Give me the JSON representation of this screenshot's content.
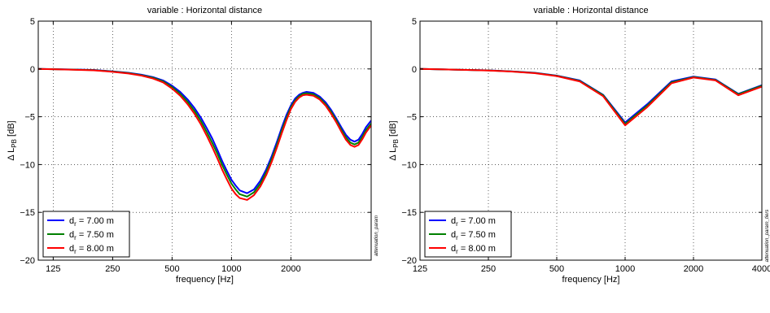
{
  "chart_data": [
    {
      "type": "line",
      "title": "variable : Horizontal distance",
      "xlabel": "frequency [Hz]",
      "ylabel_main": "Δ L",
      "ylabel_sub": "PB",
      "ylabel_unit": " [dB]",
      "x_scale": "log",
      "xlim": [
        105,
        5100
      ],
      "ylim": [
        -20,
        5
      ],
      "xticks": [
        125,
        250,
        500,
        1000,
        2000
      ],
      "yticks": [
        5,
        0,
        -5,
        -10,
        -15,
        -20
      ],
      "ytick_labels": [
        "5",
        "0",
        "−5",
        "−10",
        "−15",
        "−20"
      ],
      "grid": true,
      "legend_position": "bottom-left",
      "side_note": "attenuation_param",
      "series": [
        {
          "name_main": "d",
          "name_sub": "r",
          "name_rest": " = 7.00 m",
          "color": "#0000ff",
          "x": [
            105,
            150,
            200,
            250,
            300,
            350,
            400,
            450,
            500,
            550,
            600,
            650,
            700,
            750,
            800,
            850,
            900,
            950,
            1000,
            1050,
            1100,
            1200,
            1300,
            1400,
            1500,
            1600,
            1700,
            1800,
            1900,
            2000,
            2100,
            2200,
            2300,
            2400,
            2600,
            2800,
            3000,
            3200,
            3400,
            3600,
            3800,
            4000,
            4200,
            4400,
            4600,
            4800,
            5100
          ],
          "y": [
            0,
            -0.05,
            -0.1,
            -0.25,
            -0.4,
            -0.6,
            -0.85,
            -1.2,
            -1.75,
            -2.4,
            -3.2,
            -4.1,
            -5.1,
            -6.2,
            -7.3,
            -8.5,
            -9.7,
            -10.7,
            -11.6,
            -12.2,
            -12.7,
            -13,
            -12.6,
            -11.7,
            -10.5,
            -9.1,
            -7.6,
            -6.1,
            -4.8,
            -3.8,
            -3.1,
            -2.7,
            -2.5,
            -2.4,
            -2.5,
            -2.9,
            -3.5,
            -4.3,
            -5.2,
            -6.1,
            -6.9,
            -7.4,
            -7.6,
            -7.4,
            -6.8,
            -6.1,
            -5.4
          ]
        },
        {
          "name_main": "d",
          "name_sub": "r",
          "name_rest": " = 7.50 m",
          "color": "#008000",
          "x": [
            105,
            150,
            200,
            250,
            300,
            350,
            400,
            450,
            500,
            550,
            600,
            650,
            700,
            750,
            800,
            850,
            900,
            950,
            1000,
            1050,
            1100,
            1200,
            1300,
            1400,
            1500,
            1600,
            1700,
            1800,
            1900,
            2000,
            2100,
            2200,
            2300,
            2400,
            2600,
            2800,
            3000,
            3200,
            3400,
            3600,
            3800,
            4000,
            4200,
            4400,
            4600,
            4800,
            5100
          ],
          "y": [
            0,
            -0.06,
            -0.12,
            -0.27,
            -0.43,
            -0.65,
            -0.92,
            -1.3,
            -1.9,
            -2.6,
            -3.45,
            -4.4,
            -5.45,
            -6.6,
            -7.75,
            -8.9,
            -10.1,
            -11.1,
            -12,
            -12.6,
            -13.1,
            -13.35,
            -12.9,
            -12,
            -10.8,
            -9.4,
            -7.9,
            -6.4,
            -5.1,
            -4,
            -3.3,
            -2.85,
            -2.6,
            -2.55,
            -2.65,
            -3.05,
            -3.7,
            -4.5,
            -5.4,
            -6.35,
            -7.15,
            -7.7,
            -7.9,
            -7.7,
            -7.1,
            -6.4,
            -5.7
          ]
        },
        {
          "name_main": "d",
          "name_sub": "r",
          "name_rest": " = 8.00 m",
          "color": "#ff0000",
          "x": [
            105,
            150,
            200,
            250,
            300,
            350,
            400,
            450,
            500,
            550,
            600,
            650,
            700,
            750,
            800,
            850,
            900,
            950,
            1000,
            1050,
            1100,
            1200,
            1300,
            1400,
            1500,
            1600,
            1700,
            1800,
            1900,
            2000,
            2100,
            2200,
            2300,
            2400,
            2600,
            2800,
            3000,
            3200,
            3400,
            3600,
            3800,
            4000,
            4200,
            4400,
            4600,
            4800,
            5100
          ],
          "y": [
            0,
            -0.07,
            -0.14,
            -0.3,
            -0.47,
            -0.7,
            -1,
            -1.4,
            -2.05,
            -2.8,
            -3.7,
            -4.7,
            -5.8,
            -7,
            -8.2,
            -9.4,
            -10.6,
            -11.6,
            -12.5,
            -13.1,
            -13.5,
            -13.7,
            -13.2,
            -12.3,
            -11.1,
            -9.7,
            -8.2,
            -6.7,
            -5.35,
            -4.2,
            -3.45,
            -3,
            -2.75,
            -2.7,
            -2.8,
            -3.2,
            -3.85,
            -4.7,
            -5.6,
            -6.55,
            -7.4,
            -7.95,
            -8.15,
            -7.95,
            -7.35,
            -6.65,
            -5.9
          ]
        }
      ]
    },
    {
      "type": "line",
      "title": "variable : Horizontal distance",
      "xlabel": "frequency [Hz]",
      "ylabel_main": "Δ L",
      "ylabel_sub": "PB",
      "ylabel_unit": " [dB]",
      "x_scale": "log",
      "xlim": [
        125,
        4000
      ],
      "ylim": [
        -20,
        5
      ],
      "xticks": [
        125,
        250,
        500,
        1000,
        2000,
        4000
      ],
      "yticks": [
        5,
        0,
        -5,
        -10,
        -15,
        -20
      ],
      "ytick_labels": [
        "5",
        "0",
        "−5",
        "−10",
        "−15",
        "−20"
      ],
      "grid": true,
      "legend_position": "bottom-left",
      "side_note": "attenuation_param_tiers",
      "series": [
        {
          "name_main": "d",
          "name_sub": "r",
          "name_rest": " = 7.00 m",
          "color": "#0000ff",
          "x": [
            125,
            160,
            200,
            250,
            315,
            400,
            500,
            630,
            800,
            1000,
            1250,
            1600,
            2000,
            2500,
            3150,
            4000
          ],
          "y": [
            0,
            -0.05,
            -0.1,
            -0.15,
            -0.25,
            -0.4,
            -0.7,
            -1.2,
            -2.7,
            -5.6,
            -3.7,
            -1.3,
            -0.8,
            -1.1,
            -2.6,
            -1.7
          ]
        },
        {
          "name_main": "d",
          "name_sub": "r",
          "name_rest": " = 7.50 m",
          "color": "#008000",
          "x": [
            125,
            160,
            200,
            250,
            315,
            400,
            500,
            630,
            800,
            1000,
            1250,
            1600,
            2000,
            2500,
            3150,
            4000
          ],
          "y": [
            0,
            -0.05,
            -0.1,
            -0.16,
            -0.26,
            -0.42,
            -0.72,
            -1.25,
            -2.75,
            -5.75,
            -3.85,
            -1.4,
            -0.85,
            -1.15,
            -2.65,
            -1.75
          ]
        },
        {
          "name_main": "d",
          "name_sub": "r",
          "name_rest": " = 8.00 m",
          "color": "#ff0000",
          "x": [
            125,
            160,
            200,
            250,
            315,
            400,
            500,
            630,
            800,
            1000,
            1250,
            1600,
            2000,
            2500,
            3150,
            4000
          ],
          "y": [
            0,
            -0.05,
            -0.1,
            -0.17,
            -0.27,
            -0.44,
            -0.75,
            -1.3,
            -2.85,
            -5.9,
            -4,
            -1.5,
            -0.9,
            -1.2,
            -2.75,
            -1.85
          ]
        }
      ]
    }
  ]
}
